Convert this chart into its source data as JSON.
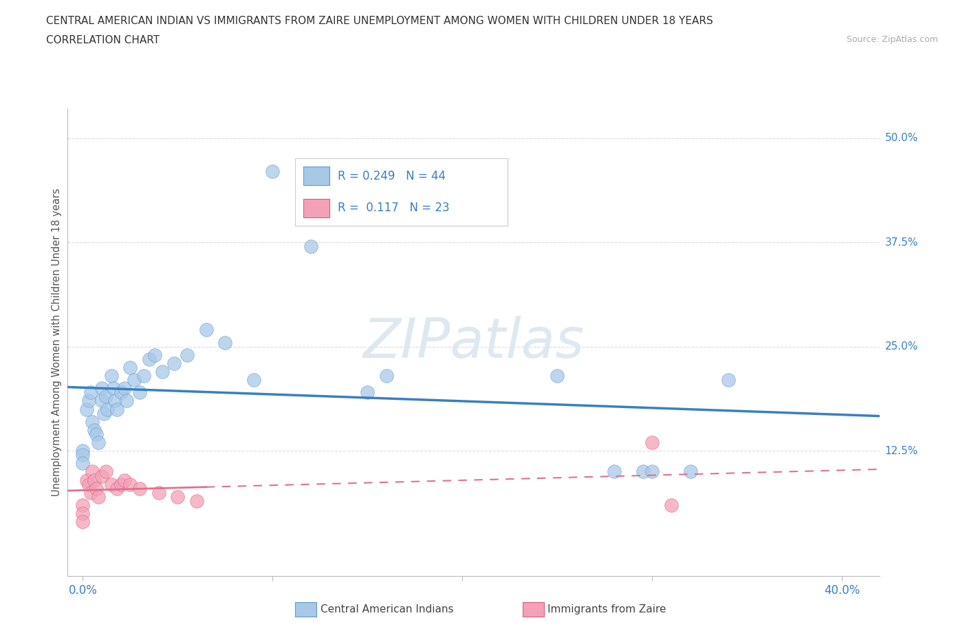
{
  "title_line1": "CENTRAL AMERICAN INDIAN VS IMMIGRANTS FROM ZAIRE UNEMPLOYMENT AMONG WOMEN WITH CHILDREN UNDER 18 YEARS",
  "title_line2": "CORRELATION CHART",
  "source_text": "Source: ZipAtlas.com",
  "ylabel": "Unemployment Among Women with Children Under 18 years",
  "y_ticks": [
    0.0,
    0.125,
    0.25,
    0.375,
    0.5
  ],
  "x_ticks": [
    0.0,
    0.1,
    0.2,
    0.3,
    0.4
  ],
  "xlim": [
    -0.008,
    0.42
  ],
  "ylim": [
    -0.025,
    0.535
  ],
  "legend_label_blue": "Central American Indians",
  "legend_label_pink": "Immigrants from Zaire",
  "R_blue": 0.249,
  "N_blue": 44,
  "R_pink": 0.117,
  "N_pink": 23,
  "color_blue": "#a8c8e8",
  "color_pink": "#f4a0b8",
  "edge_blue": "#5b9bd5",
  "edge_pink": "#d4607a",
  "line_blue": "#3a7fc1",
  "line_pink": "#e07090",
  "watermark_color": "#dde8f0",
  "grid_color": "#cccccc",
  "background_color": "#ffffff",
  "blue_scatter_x": [
    0.0,
    0.0,
    0.0,
    0.002,
    0.003,
    0.004,
    0.005,
    0.006,
    0.007,
    0.008,
    0.01,
    0.01,
    0.011,
    0.012,
    0.013,
    0.015,
    0.016,
    0.017,
    0.018,
    0.02,
    0.022,
    0.023,
    0.025,
    0.027,
    0.03,
    0.032,
    0.035,
    0.038,
    0.042,
    0.048,
    0.055,
    0.065,
    0.075,
    0.09,
    0.1,
    0.12,
    0.15,
    0.16,
    0.25,
    0.28,
    0.295,
    0.3,
    0.32,
    0.34
  ],
  "blue_scatter_y": [
    0.125,
    0.12,
    0.11,
    0.175,
    0.185,
    0.195,
    0.16,
    0.15,
    0.145,
    0.135,
    0.2,
    0.185,
    0.17,
    0.19,
    0.175,
    0.215,
    0.2,
    0.185,
    0.175,
    0.195,
    0.2,
    0.185,
    0.225,
    0.21,
    0.195,
    0.215,
    0.235,
    0.24,
    0.22,
    0.23,
    0.24,
    0.27,
    0.255,
    0.21,
    0.46,
    0.37,
    0.195,
    0.215,
    0.215,
    0.1,
    0.1,
    0.1,
    0.1,
    0.21
  ],
  "pink_scatter_x": [
    0.0,
    0.0,
    0.0,
    0.002,
    0.003,
    0.004,
    0.005,
    0.006,
    0.007,
    0.008,
    0.01,
    0.012,
    0.015,
    0.018,
    0.02,
    0.022,
    0.025,
    0.03,
    0.04,
    0.05,
    0.06,
    0.3,
    0.31
  ],
  "pink_scatter_y": [
    0.06,
    0.05,
    0.04,
    0.09,
    0.085,
    0.075,
    0.1,
    0.09,
    0.08,
    0.07,
    0.095,
    0.1,
    0.085,
    0.08,
    0.085,
    0.09,
    0.085,
    0.08,
    0.075,
    0.07,
    0.065,
    0.135,
    0.06
  ]
}
